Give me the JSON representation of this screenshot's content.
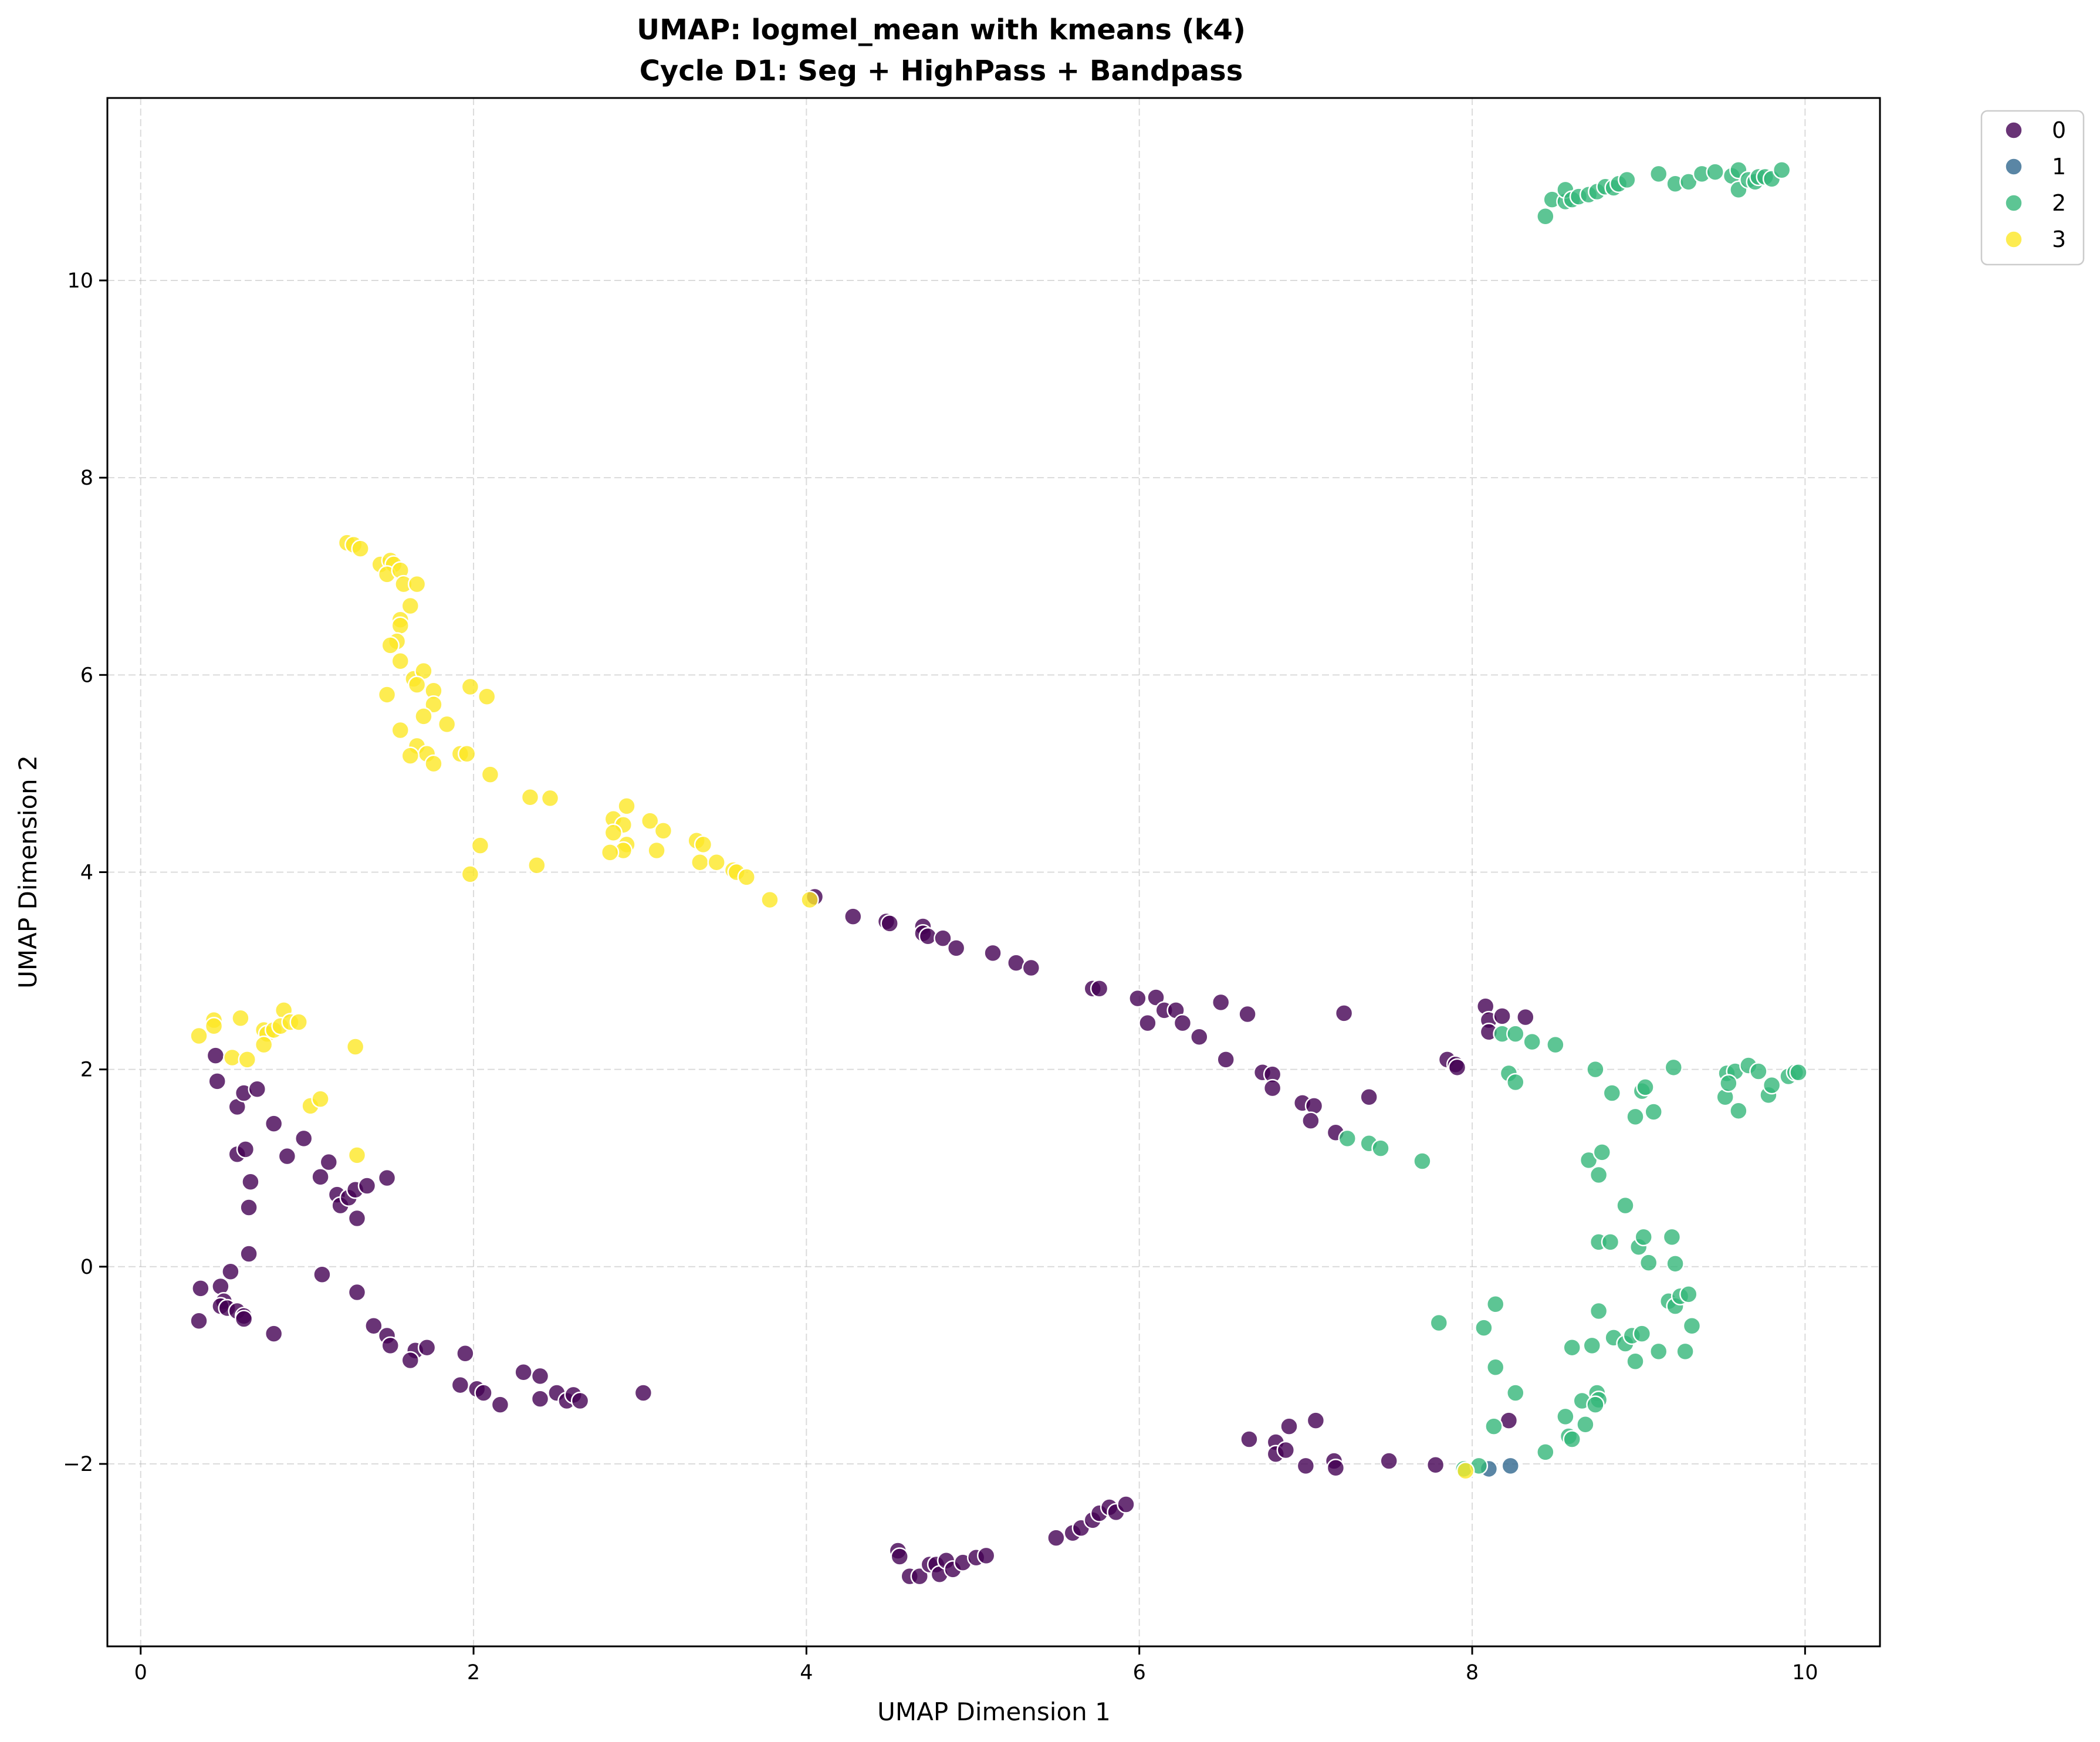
{
  "chart_data": {
    "type": "scatter",
    "title": "UMAP: logmel_mean with kmeans (k4)",
    "subtitle": "Cycle D1: Seg + HighPass + Bandpass",
    "xlabel": "UMAP Dimension 1",
    "ylabel": "UMAP Dimension 2",
    "xlim": [
      -0.2,
      10.45
    ],
    "ylim": [
      -3.85,
      11.85
    ],
    "xticks": [
      0,
      2,
      4,
      6,
      8,
      10
    ],
    "yticks": [
      -2,
      0,
      2,
      4,
      6,
      8,
      10
    ],
    "grid": true,
    "legend_position": "outside top-right",
    "series": [
      {
        "name": "0",
        "color": "#440154",
        "points": [
          [
            4.05,
            3.75
          ],
          [
            4.28,
            3.55
          ],
          [
            4.48,
            3.5
          ],
          [
            4.5,
            3.48
          ],
          [
            4.7,
            3.45
          ],
          [
            4.7,
            3.38
          ],
          [
            4.73,
            3.35
          ],
          [
            4.82,
            3.33
          ],
          [
            4.9,
            3.23
          ],
          [
            5.12,
            3.18
          ],
          [
            5.26,
            3.08
          ],
          [
            5.35,
            3.03
          ],
          [
            5.72,
            2.82
          ],
          [
            5.76,
            2.82
          ],
          [
            5.99,
            2.72
          ],
          [
            6.1,
            2.73
          ],
          [
            6.05,
            2.47
          ],
          [
            6.15,
            2.6
          ],
          [
            6.22,
            2.6
          ],
          [
            6.26,
            2.47
          ],
          [
            6.36,
            2.33
          ],
          [
            6.49,
            2.68
          ],
          [
            6.65,
            2.56
          ],
          [
            6.52,
            2.1
          ],
          [
            6.74,
            1.97
          ],
          [
            6.8,
            1.95
          ],
          [
            6.8,
            1.81
          ],
          [
            6.98,
            1.66
          ],
          [
            7.05,
            1.63
          ],
          [
            7.03,
            1.48
          ],
          [
            7.23,
            2.57
          ],
          [
            7.18,
            1.36
          ],
          [
            7.38,
            1.72
          ],
          [
            7.85,
            2.1
          ],
          [
            7.9,
            2.05
          ],
          [
            7.91,
            2.02
          ],
          [
            8.08,
            2.64
          ],
          [
            8.1,
            2.5
          ],
          [
            8.1,
            2.38
          ],
          [
            8.18,
            2.54
          ],
          [
            8.32,
            2.53
          ],
          [
            0.45,
            2.14
          ],
          [
            0.46,
            1.88
          ],
          [
            0.58,
            1.62
          ],
          [
            0.62,
            1.76
          ],
          [
            0.7,
            1.8
          ],
          [
            0.8,
            1.45
          ],
          [
            0.98,
            1.3
          ],
          [
            0.58,
            1.14
          ],
          [
            0.63,
            1.19
          ],
          [
            0.88,
            1.12
          ],
          [
            0.66,
            0.86
          ],
          [
            0.65,
            0.6
          ],
          [
            1.13,
            1.06
          ],
          [
            1.08,
            0.91
          ],
          [
            1.18,
            0.73
          ],
          [
            1.2,
            0.62
          ],
          [
            1.25,
            0.7
          ],
          [
            1.29,
            0.78
          ],
          [
            1.36,
            0.82
          ],
          [
            1.48,
            0.9
          ],
          [
            1.3,
            0.49
          ],
          [
            0.65,
            0.13
          ],
          [
            0.54,
            -0.05
          ],
          [
            0.48,
            -0.2
          ],
          [
            0.36,
            -0.22
          ],
          [
            0.5,
            -0.35
          ],
          [
            0.48,
            -0.4
          ],
          [
            0.52,
            -0.42
          ],
          [
            0.58,
            -0.45
          ],
          [
            0.62,
            -0.5
          ],
          [
            0.62,
            -0.53
          ],
          [
            0.35,
            -0.55
          ],
          [
            0.8,
            -0.68
          ],
          [
            1.09,
            -0.08
          ],
          [
            1.3,
            -0.26
          ],
          [
            1.4,
            -0.6
          ],
          [
            1.48,
            -0.7
          ],
          [
            1.5,
            -0.8
          ],
          [
            1.65,
            -0.85
          ],
          [
            1.72,
            -0.82
          ],
          [
            1.62,
            -0.95
          ],
          [
            1.95,
            -0.88
          ],
          [
            1.92,
            -1.2
          ],
          [
            2.02,
            -1.24
          ],
          [
            2.06,
            -1.28
          ],
          [
            2.16,
            -1.4
          ],
          [
            2.3,
            -1.07
          ],
          [
            2.4,
            -1.11
          ],
          [
            2.4,
            -1.34
          ],
          [
            2.5,
            -1.28
          ],
          [
            2.56,
            -1.36
          ],
          [
            2.6,
            -1.3
          ],
          [
            2.64,
            -1.36
          ],
          [
            3.02,
            -1.28
          ],
          [
            6.66,
            -1.75
          ],
          [
            6.82,
            -1.78
          ],
          [
            6.82,
            -1.9
          ],
          [
            6.88,
            -1.86
          ],
          [
            6.9,
            -1.62
          ],
          [
            7.06,
            -1.56
          ],
          [
            7.0,
            -2.02
          ],
          [
            7.17,
            -1.97
          ],
          [
            7.18,
            -2.04
          ],
          [
            7.5,
            -1.97
          ],
          [
            7.78,
            -2.01
          ],
          [
            8.22,
            -1.56
          ],
          [
            5.5,
            -2.75
          ],
          [
            5.6,
            -2.7
          ],
          [
            5.65,
            -2.65
          ],
          [
            5.72,
            -2.57
          ],
          [
            5.76,
            -2.5
          ],
          [
            5.82,
            -2.44
          ],
          [
            5.86,
            -2.49
          ],
          [
            5.92,
            -2.41
          ],
          [
            4.55,
            -2.88
          ],
          [
            4.56,
            -2.94
          ],
          [
            4.62,
            -3.14
          ],
          [
            4.68,
            -3.14
          ],
          [
            4.74,
            -3.02
          ],
          [
            4.78,
            -3.02
          ],
          [
            4.8,
            -3.12
          ],
          [
            4.84,
            -2.98
          ],
          [
            4.88,
            -3.07
          ],
          [
            4.94,
            -3.0
          ],
          [
            5.02,
            -2.95
          ],
          [
            5.08,
            -2.93
          ]
        ]
      },
      {
        "name": "1",
        "color": "#31688e",
        "points": [
          [
            8.1,
            -2.05
          ],
          [
            8.23,
            -2.02
          ]
        ]
      },
      {
        "name": "2",
        "color": "#35b779",
        "points": [
          [
            8.44,
            10.65
          ],
          [
            8.48,
            10.82
          ],
          [
            8.56,
            10.8
          ],
          [
            8.56,
            10.92
          ],
          [
            8.6,
            10.82
          ],
          [
            8.64,
            10.85
          ],
          [
            8.7,
            10.87
          ],
          [
            8.75,
            10.9
          ],
          [
            8.8,
            10.95
          ],
          [
            8.85,
            10.94
          ],
          [
            8.88,
            10.98
          ],
          [
            8.93,
            11.02
          ],
          [
            9.12,
            11.08
          ],
          [
            9.22,
            10.98
          ],
          [
            9.3,
            11.0
          ],
          [
            9.38,
            11.08
          ],
          [
            9.46,
            11.1
          ],
          [
            9.56,
            11.06
          ],
          [
            9.6,
            11.12
          ],
          [
            9.6,
            10.92
          ],
          [
            9.66,
            11.02
          ],
          [
            9.7,
            11.0
          ],
          [
            9.72,
            11.05
          ],
          [
            9.76,
            11.05
          ],
          [
            9.8,
            11.03
          ],
          [
            9.86,
            11.12
          ],
          [
            8.18,
            2.36
          ],
          [
            8.26,
            2.36
          ],
          [
            8.36,
            2.28
          ],
          [
            8.5,
            2.25
          ],
          [
            8.22,
            1.96
          ],
          [
            8.26,
            1.87
          ],
          [
            8.74,
            2.0
          ],
          [
            8.84,
            1.76
          ],
          [
            9.02,
            1.78
          ],
          [
            9.04,
            1.82
          ],
          [
            8.98,
            1.52
          ],
          [
            9.09,
            1.57
          ],
          [
            9.21,
            2.02
          ],
          [
            9.53,
            1.96
          ],
          [
            9.58,
            1.98
          ],
          [
            9.66,
            2.04
          ],
          [
            9.72,
            1.98
          ],
          [
            9.52,
            1.72
          ],
          [
            9.54,
            1.86
          ],
          [
            9.6,
            1.58
          ],
          [
            9.78,
            1.74
          ],
          [
            9.8,
            1.84
          ],
          [
            9.9,
            1.93
          ],
          [
            9.94,
            1.97
          ],
          [
            9.96,
            1.97
          ],
          [
            7.25,
            1.3
          ],
          [
            7.38,
            1.25
          ],
          [
            7.45,
            1.2
          ],
          [
            7.7,
            1.07
          ],
          [
            8.7,
            1.08
          ],
          [
            8.78,
            1.16
          ],
          [
            8.76,
            0.93
          ],
          [
            8.92,
            0.62
          ],
          [
            8.76,
            0.25
          ],
          [
            8.83,
            0.25
          ],
          [
            9.0,
            0.2
          ],
          [
            9.03,
            0.3
          ],
          [
            9.06,
            0.04
          ],
          [
            9.2,
            0.3
          ],
          [
            9.22,
            0.03
          ],
          [
            9.18,
            -0.35
          ],
          [
            9.22,
            -0.4
          ],
          [
            9.25,
            -0.3
          ],
          [
            9.3,
            -0.28
          ],
          [
            8.76,
            -0.45
          ],
          [
            8.14,
            -0.38
          ],
          [
            8.07,
            -0.62
          ],
          [
            7.8,
            -0.57
          ],
          [
            8.6,
            -0.82
          ],
          [
            8.72,
            -0.8
          ],
          [
            8.85,
            -0.72
          ],
          [
            8.92,
            -0.78
          ],
          [
            8.96,
            -0.7
          ],
          [
            9.02,
            -0.68
          ],
          [
            8.98,
            -0.96
          ],
          [
            9.12,
            -0.86
          ],
          [
            9.28,
            -0.86
          ],
          [
            9.32,
            -0.6
          ],
          [
            8.14,
            -1.02
          ],
          [
            8.26,
            -1.28
          ],
          [
            8.56,
            -1.52
          ],
          [
            8.66,
            -1.36
          ],
          [
            8.68,
            -1.6
          ],
          [
            8.75,
            -1.28
          ],
          [
            8.76,
            -1.35
          ],
          [
            8.74,
            -1.4
          ],
          [
            8.13,
            -1.62
          ],
          [
            8.58,
            -1.72
          ],
          [
            8.6,
            -1.75
          ],
          [
            8.44,
            -1.88
          ],
          [
            7.95,
            -2.05
          ],
          [
            8.04,
            -2.02
          ]
        ]
      },
      {
        "name": "3",
        "color": "#fde725",
        "points": [
          [
            1.24,
            7.34
          ],
          [
            1.28,
            7.32
          ],
          [
            1.32,
            7.28
          ],
          [
            1.44,
            7.12
          ],
          [
            1.5,
            7.16
          ],
          [
            1.52,
            7.12
          ],
          [
            1.48,
            7.02
          ],
          [
            1.56,
            7.06
          ],
          [
            1.58,
            6.92
          ],
          [
            1.66,
            6.92
          ],
          [
            1.62,
            6.7
          ],
          [
            1.56,
            6.56
          ],
          [
            1.56,
            6.5
          ],
          [
            1.54,
            6.34
          ],
          [
            1.5,
            6.3
          ],
          [
            1.56,
            6.14
          ],
          [
            1.64,
            5.96
          ],
          [
            1.7,
            6.04
          ],
          [
            1.66,
            5.9
          ],
          [
            1.76,
            5.84
          ],
          [
            1.48,
            5.8
          ],
          [
            1.76,
            5.7
          ],
          [
            1.7,
            5.58
          ],
          [
            1.84,
            5.5
          ],
          [
            1.56,
            5.44
          ],
          [
            1.98,
            5.88
          ],
          [
            2.08,
            5.78
          ],
          [
            1.66,
            5.28
          ],
          [
            1.72,
            5.2
          ],
          [
            1.76,
            5.1
          ],
          [
            1.62,
            5.18
          ],
          [
            1.92,
            5.2
          ],
          [
            1.96,
            5.2
          ],
          [
            2.1,
            4.99
          ],
          [
            2.34,
            4.76
          ],
          [
            2.46,
            4.75
          ],
          [
            2.04,
            4.27
          ],
          [
            1.98,
            3.98
          ],
          [
            2.38,
            4.07
          ],
          [
            2.84,
            4.54
          ],
          [
            2.92,
            4.67
          ],
          [
            2.9,
            4.48
          ],
          [
            2.84,
            4.4
          ],
          [
            2.92,
            4.28
          ],
          [
            2.9,
            4.22
          ],
          [
            2.82,
            4.2
          ],
          [
            3.06,
            4.52
          ],
          [
            3.14,
            4.42
          ],
          [
            3.1,
            4.22
          ],
          [
            3.34,
            4.32
          ],
          [
            3.38,
            4.28
          ],
          [
            3.36,
            4.1
          ],
          [
            3.46,
            4.1
          ],
          [
            3.56,
            4.02
          ],
          [
            3.58,
            4.0
          ],
          [
            3.64,
            3.95
          ],
          [
            3.78,
            3.72
          ],
          [
            4.02,
            3.72
          ],
          [
            0.35,
            2.34
          ],
          [
            0.44,
            2.5
          ],
          [
            0.44,
            2.44
          ],
          [
            0.6,
            2.52
          ],
          [
            0.74,
            2.4
          ],
          [
            0.76,
            2.36
          ],
          [
            0.8,
            2.4
          ],
          [
            0.86,
            2.6
          ],
          [
            0.84,
            2.44
          ],
          [
            0.9,
            2.48
          ],
          [
            0.95,
            2.48
          ],
          [
            0.74,
            2.25
          ],
          [
            0.55,
            2.12
          ],
          [
            0.64,
            2.1
          ],
          [
            1.29,
            2.23
          ],
          [
            1.02,
            1.63
          ],
          [
            1.08,
            1.7
          ],
          [
            1.3,
            1.13
          ],
          [
            7.96,
            -2.07
          ]
        ]
      }
    ]
  }
}
